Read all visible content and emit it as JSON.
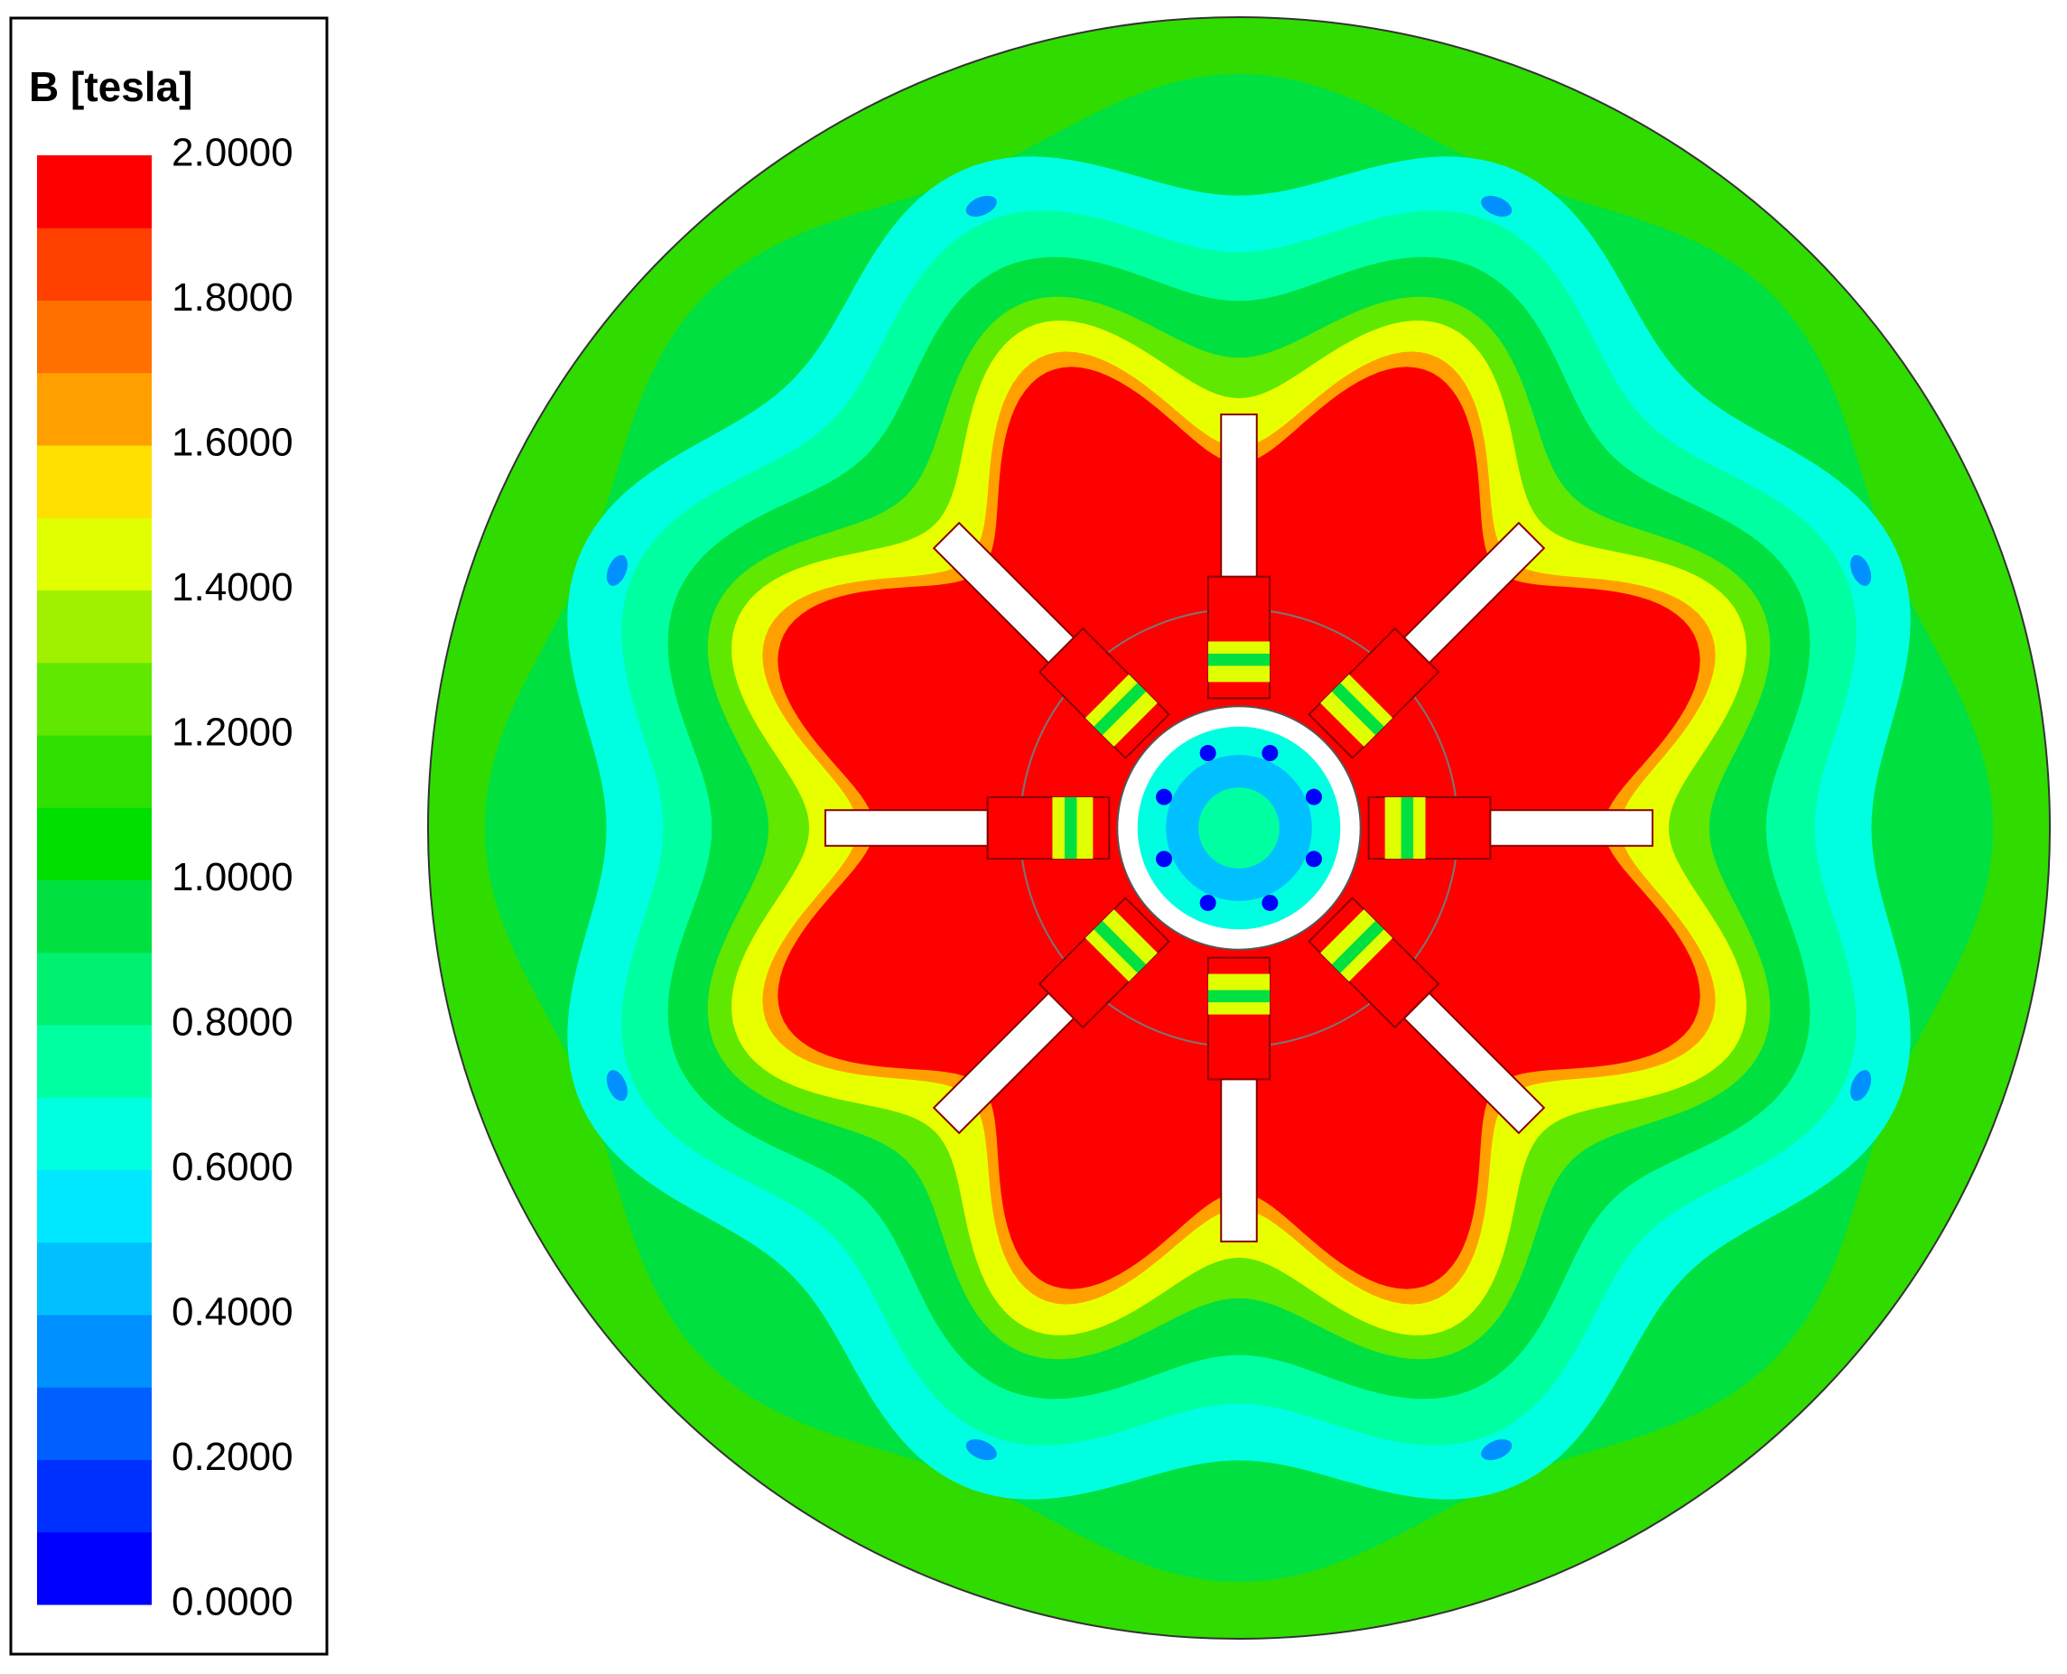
{
  "chart_data": {
    "type": "contour",
    "title": "B [tesla]",
    "zlim": [
      0,
      2
    ],
    "zticks": [
      {
        "value": 0,
        "label": "0.0000"
      },
      {
        "value": 0.2,
        "label": "0.2000"
      },
      {
        "value": 0.4,
        "label": "0.4000"
      },
      {
        "value": 0.6,
        "label": "0.6000"
      },
      {
        "value": 0.8,
        "label": "0.8000"
      },
      {
        "value": 1,
        "label": "1.0000"
      },
      {
        "value": 1.2,
        "label": "1.2000"
      },
      {
        "value": 1.4,
        "label": "1.4000"
      },
      {
        "value": 1.6,
        "label": "1.6000"
      },
      {
        "value": 1.8,
        "label": "1.8000"
      },
      {
        "value": 2,
        "label": "2.0000"
      }
    ],
    "colors": [
      "#0000ff",
      "#0030ff",
      "#0060ff",
      "#0090ff",
      "#00c0ff",
      "#00e8ff",
      "#00ffe0",
      "#00ffa0",
      "#00f070",
      "#00e040",
      "#00e000",
      "#30e000",
      "#60e800",
      "#a0f000",
      "#e0ff00",
      "#ffe000",
      "#ffa000",
      "#ff7000",
      "#ff4000",
      "#ff0000"
    ]
  }
}
